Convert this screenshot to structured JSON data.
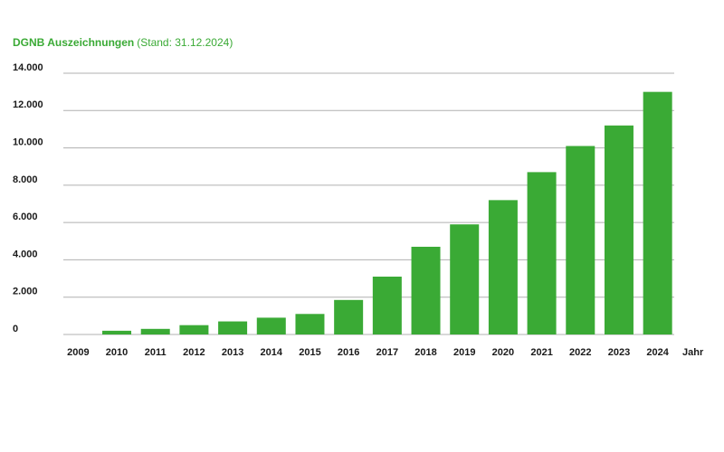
{
  "chart_data": {
    "type": "bar",
    "title": "DGNB Auszeichnungen",
    "subtitle": "(Stand: 31.12.2024)",
    "x_label": "Jahr",
    "categories": [
      "2009",
      "2010",
      "2011",
      "2012",
      "2013",
      "2014",
      "2015",
      "2016",
      "2017",
      "2018",
      "2019",
      "2020",
      "2021",
      "2022",
      "2023",
      "2024"
    ],
    "values": [
      0,
      200,
      300,
      500,
      700,
      900,
      1100,
      1850,
      3100,
      4700,
      5900,
      7200,
      8700,
      10100,
      11200,
      13000
    ],
    "color": "#3aaa35",
    "ylim": [
      0,
      14000
    ],
    "yticks": [
      0,
      {
        "value": 2000,
        "label": "2.000"
      },
      {
        "value": 4000,
        "label": "4.000"
      },
      {
        "value": 6000,
        "label": "6.000"
      },
      {
        "value": 8000,
        "label": "8.000"
      },
      {
        "value": 10000,
        "label": "10.000"
      },
      {
        "value": 12000,
        "label": "12.000"
      },
      {
        "value": 14000,
        "label": "14.000"
      }
    ],
    "grid": true
  }
}
